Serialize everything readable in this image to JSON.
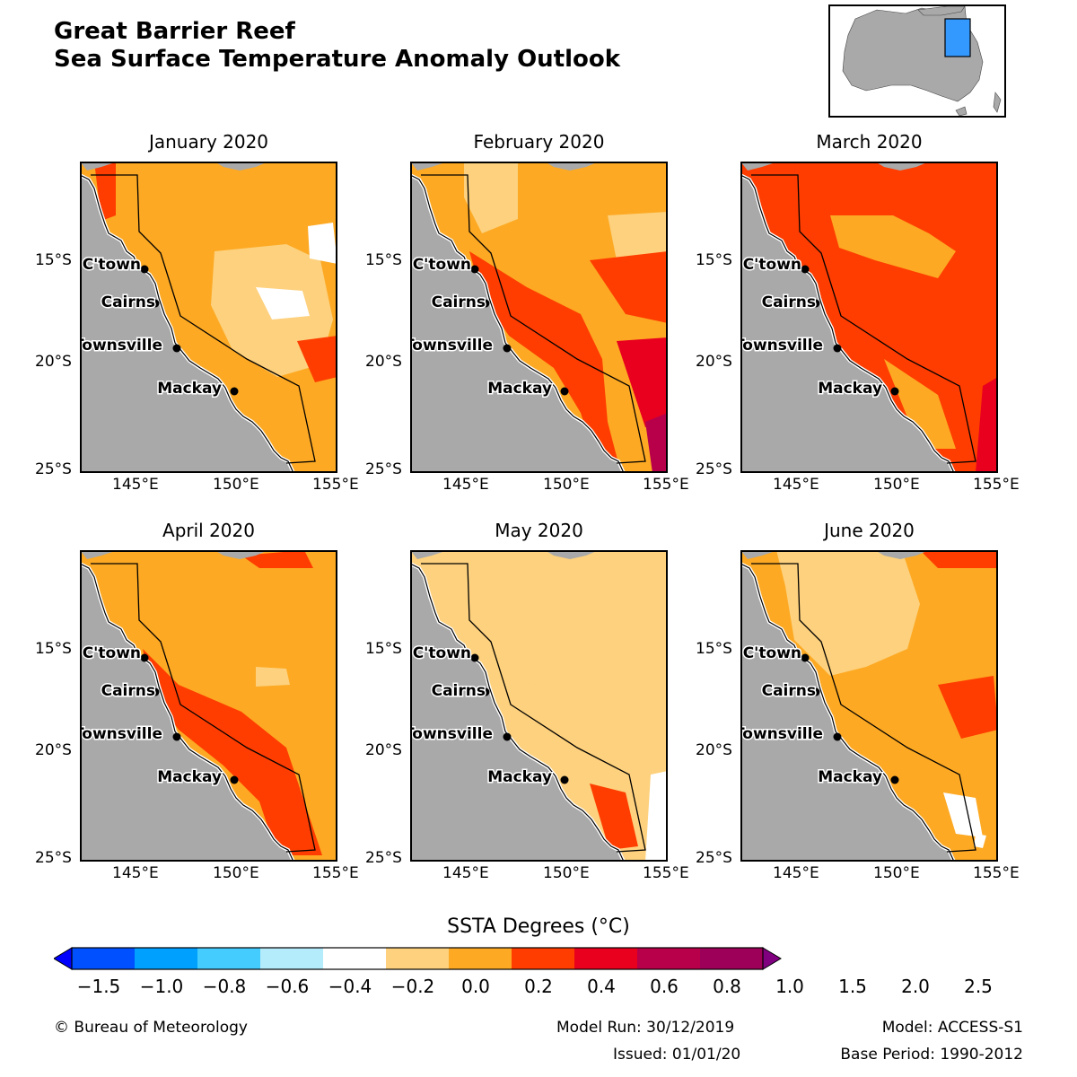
{
  "title_line1": "Great Barrier Reef",
  "title_line2": "Sea Surface Temperature Anomaly Outlook",
  "colors": {
    "land": "#a9a9a9",
    "coast_outline": "#ffffff",
    "region_outline": "#000000",
    "inset_highlight": "#3399ff"
  },
  "panels": [
    {
      "title": "January 2020",
      "dominant": "0.4 to 0.6",
      "fields": [
        [
          "0.4",
          "0.6"
        ],
        [
          "0.6",
          "0.8"
        ],
        [
          "0.2",
          "0.4"
        ],
        [
          "0.0",
          "0.2"
        ]
      ]
    },
    {
      "title": "February 2020",
      "dominant": "0.4 to 0.6",
      "fields": [
        [
          "0.2",
          "0.4"
        ],
        [
          "0.6",
          "0.8"
        ],
        [
          "0.8",
          "1.0"
        ],
        [
          "1.0",
          "1.5"
        ]
      ]
    },
    {
      "title": "March 2020",
      "dominant": "0.6 to 0.8",
      "fields": [
        [
          "0.4",
          "0.6"
        ],
        [
          "0.6",
          "0.8"
        ],
        [
          "0.8",
          "1.0"
        ]
      ]
    },
    {
      "title": "April 2020",
      "dominant": "0.4 to 0.6",
      "fields": [
        [
          "0.2",
          "0.4"
        ],
        [
          "0.6",
          "0.8"
        ]
      ]
    },
    {
      "title": "May 2020",
      "dominant": "0.2 to 0.4",
      "fields": [
        [
          "0.2",
          "0.4"
        ],
        [
          "0.4",
          "0.6"
        ],
        [
          "0.6",
          "0.8"
        ],
        [
          "0.0",
          "0.2"
        ]
      ]
    },
    {
      "title": "June 2020",
      "dominant": "0.4 to 0.6",
      "fields": [
        [
          "0.2",
          "0.4"
        ],
        [
          "0.4",
          "0.6"
        ],
        [
          "0.6",
          "0.8"
        ],
        [
          "0.0",
          "0.2"
        ],
        [
          "-0.2",
          "0.0"
        ]
      ]
    }
  ],
  "lat_ticks": [
    "15°S",
    "20°S",
    "25°S"
  ],
  "lon_ticks": [
    "145°E",
    "150°E",
    "155°E"
  ],
  "cities": [
    "C'town",
    "Cairns",
    "Townsville",
    "Mackay"
  ],
  "colorbar": {
    "title": "SSTA Degrees (°C)",
    "bins": [
      {
        "lo": "-1.5",
        "hi": "-1.0",
        "color": "#0000ff"
      },
      {
        "lo": "-1.0",
        "hi": "-0.8",
        "color": "#0050ff"
      },
      {
        "lo": "-0.8",
        "hi": "-0.6",
        "color": "#00a0ff"
      },
      {
        "lo": "-0.6",
        "hi": "-0.4",
        "color": "#44ccff"
      },
      {
        "lo": "-0.4",
        "hi": "-0.2",
        "color": "#b4ecfc"
      },
      {
        "lo": "-0.2",
        "hi": "0.2",
        "color": "#ffffff"
      },
      {
        "lo": "0.2",
        "hi": "0.4",
        "color": "#fdd17d"
      },
      {
        "lo": "0.4",
        "hi": "0.6",
        "color": "#fda923"
      },
      {
        "lo": "0.6",
        "hi": "0.8",
        "color": "#ff3d00"
      },
      {
        "lo": "0.8",
        "hi": "1.0",
        "color": "#e8001e"
      },
      {
        "lo": "1.0",
        "hi": "1.5",
        "color": "#b8004a"
      },
      {
        "lo": "1.5",
        "hi": "2.0",
        "color": "#9c0058"
      },
      {
        "lo": "2.0",
        "hi": "2.5",
        "color": "#800080"
      }
    ],
    "labels": [
      "−1.5",
      "−1.0",
      "−0.8",
      "−0.6",
      "−0.4",
      "−0.2",
      "0.0",
      "0.2",
      "0.4",
      "0.6",
      "0.8",
      "1.0",
      "1.5",
      "2.0",
      "2.5"
    ]
  },
  "footer": {
    "copyright": "© Bureau of Meteorology",
    "model_run": "Model Run: 30/12/2019",
    "issued": "Issued: 01/01/20",
    "model": "Model: ACCESS-S1",
    "base_period": "Base Period: 1990-2012"
  }
}
